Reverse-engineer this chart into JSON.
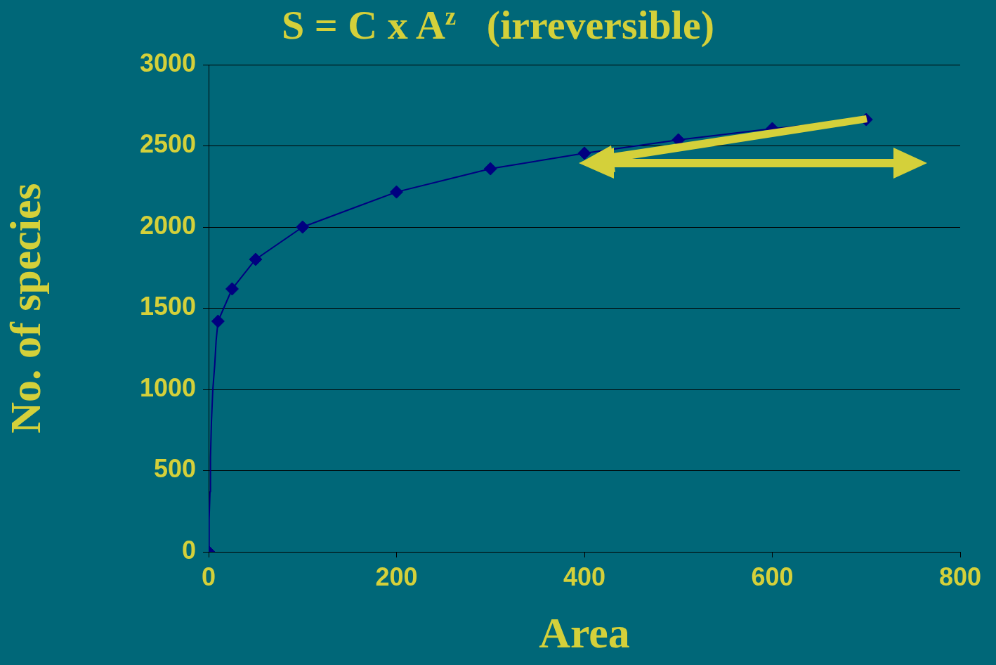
{
  "chart_data": {
    "type": "line",
    "title": "S = C x A$^{z}$   (irreversible)",
    "xlabel": "Area",
    "ylabel": "No. of species",
    "xlim": [
      0,
      800
    ],
    "xticks": [
      0,
      200,
      400,
      600,
      800
    ],
    "ylim": [
      0,
      3000
    ],
    "yticks": [
      0,
      500,
      1000,
      1500,
      2000,
      2500,
      3000
    ],
    "series": [
      {
        "color": "#000080",
        "marker": "none",
        "line_style": "solid",
        "x": [
          0,
          0.5,
          1.5,
          2,
          3,
          4.5,
          6.5,
          8,
          10,
          25,
          50,
          100,
          200,
          300,
          400,
          500,
          600,
          700
        ],
        "values": [
          0,
          200,
          370,
          580,
          800,
          1000,
          1150,
          1300,
          1420,
          1619,
          1801,
          2000,
          2216,
          2359,
          2455,
          2537,
          2606,
          2662
        ]
      },
      {
        "type": "scatter",
        "color": "#000080",
        "marker": "diamond",
        "x": [
          0,
          10,
          25,
          50,
          100,
          200,
          300,
          400,
          500,
          600,
          700
        ],
        "values": [
          0,
          1420,
          1619,
          1801,
          2000,
          2216,
          2359,
          2455,
          2537,
          2606,
          2662
        ]
      }
    ],
    "grid": "y",
    "legend": false
  }
}
